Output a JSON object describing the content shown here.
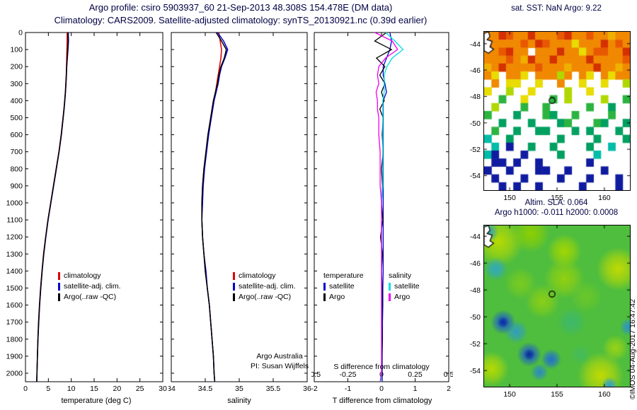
{
  "header": {
    "line1": "Argo profile: csiro 5903937_60 21-Sep-2013 48.308S 154.478E (DM data)",
    "line2": "Climatology: CARS2009. Satellite-adjusted climatology: synTS_20130921.nc (0.39d earlier)"
  },
  "annotations": {
    "argo_australia": "Argo Australia",
    "pi": "PI: Susan Wijffels",
    "imos_credit": "©IMOS 04-Aug-2017 16:47:42"
  },
  "colors": {
    "climatology": "#dc0000",
    "satellite": "#0000cc",
    "argo": "#000000",
    "sal_satellite": "#00dce0",
    "sal_argo": "#ee00ee",
    "title_text": "#000044"
  },
  "legends": {
    "profile": [
      {
        "label": "climatology",
        "color_key": "climatology"
      },
      {
        "label": "satellite-adj. clim.",
        "color_key": "satellite"
      },
      {
        "label": "Argo(..raw -QC)",
        "color_key": "argo"
      }
    ],
    "difference": {
      "col1_header": "temperature",
      "col2_header": "salinity",
      "col1": [
        {
          "label": "satellite",
          "color_key": "satellite"
        },
        {
          "label": "Argo",
          "color_key": "argo"
        }
      ],
      "col2": [
        {
          "label": "satellite",
          "color_key": "sal_satellite"
        },
        {
          "label": "Argo",
          "color_key": "sal_argo"
        }
      ]
    }
  },
  "maps": {
    "coastline": [
      [
        0.0,
        0.01
      ],
      [
        0.03,
        0.0
      ],
      [
        0.04,
        0.03
      ],
      [
        0.02,
        0.05
      ],
      [
        0.055,
        0.06
      ],
      [
        0.04,
        0.095
      ],
      [
        0.065,
        0.11
      ],
      [
        0.03,
        0.135
      ],
      [
        0.0,
        0.12
      ]
    ]
  },
  "chart_data": [
    {
      "type": "line",
      "name": "temperature_profile",
      "xlabel": "temperature (deg C)",
      "xlim": [
        0,
        30
      ],
      "xticks": [
        0,
        5,
        10,
        15,
        20,
        25,
        30
      ],
      "ylim": [
        0,
        2050
      ],
      "yticks": [
        0,
        100,
        200,
        300,
        400,
        500,
        600,
        700,
        800,
        900,
        1000,
        1100,
        1200,
        1300,
        1400,
        1500,
        1600,
        1700,
        1800,
        1900,
        2000
      ],
      "y_inverted": true,
      "depths": [
        0,
        50,
        100,
        150,
        200,
        250,
        300,
        350,
        400,
        450,
        500,
        600,
        700,
        800,
        900,
        1000,
        1100,
        1200,
        1300,
        1400,
        1500,
        1600,
        1700,
        1800,
        1900,
        2000,
        2050
      ],
      "series": [
        {
          "name": "climatology",
          "color": "#dc0000",
          "values": [
            9.1,
            9.1,
            9.05,
            9.0,
            8.95,
            8.9,
            8.8,
            8.7,
            8.55,
            8.4,
            8.2,
            7.8,
            7.3,
            6.7,
            6.1,
            5.5,
            4.9,
            4.4,
            3.95,
            3.6,
            3.3,
            3.05,
            2.85,
            2.7,
            2.6,
            2.5,
            2.45
          ]
        },
        {
          "name": "satellite-adj. clim.",
          "color": "#0000cc",
          "values": [
            9.35,
            9.4,
            9.3,
            9.15,
            9.0,
            8.95,
            8.85,
            8.75,
            8.6,
            8.45,
            8.25,
            7.85,
            7.35,
            6.75,
            6.15,
            5.55,
            4.95,
            4.45,
            4.0,
            3.65,
            3.35,
            3.1,
            2.9,
            2.74,
            2.62,
            2.52,
            2.47
          ]
        },
        {
          "name": "Argo(..raw -QC)",
          "color": "#000000",
          "values": [
            9.25,
            9.32,
            9.22,
            9.12,
            9.02,
            8.92,
            8.84,
            8.72,
            8.58,
            8.42,
            8.22,
            7.82,
            7.33,
            6.72,
            6.12,
            5.52,
            4.92,
            4.42,
            3.98,
            3.62,
            3.32,
            3.07,
            2.87,
            2.72,
            2.61,
            2.51,
            2.46
          ]
        }
      ]
    },
    {
      "type": "line",
      "name": "salinity_profile",
      "xlabel": "salinity",
      "xlim": [
        34,
        36
      ],
      "xticks": [
        34,
        34.5,
        35,
        35.5,
        36
      ],
      "ylim": [
        0,
        2050
      ],
      "yticks": [
        0,
        100,
        200,
        300,
        400,
        500,
        600,
        700,
        800,
        900,
        1000,
        1100,
        1200,
        1300,
        1400,
        1500,
        1600,
        1700,
        1800,
        1900,
        2000
      ],
      "y_inverted": true,
      "depths": [
        0,
        50,
        100,
        150,
        200,
        250,
        300,
        350,
        400,
        450,
        500,
        600,
        700,
        800,
        900,
        1000,
        1100,
        1200,
        1300,
        1400,
        1500,
        1600,
        1700,
        1800,
        1900,
        2000,
        2050
      ],
      "series": [
        {
          "name": "climatology",
          "color": "#dc0000",
          "values": [
            34.7,
            34.72,
            34.74,
            34.73,
            34.71,
            34.69,
            34.67,
            34.65,
            34.62,
            34.6,
            34.58,
            34.54,
            34.51,
            34.48,
            34.46,
            34.45,
            34.45,
            34.46,
            34.48,
            34.5,
            34.53,
            34.56,
            34.58,
            34.6,
            34.62,
            34.63,
            34.64
          ]
        },
        {
          "name": "satellite-adj. clim.",
          "color": "#0000cc",
          "values": [
            34.68,
            34.77,
            34.83,
            34.79,
            34.74,
            34.71,
            34.69,
            34.66,
            34.63,
            34.61,
            34.59,
            34.55,
            34.52,
            34.49,
            34.47,
            34.46,
            34.45,
            34.46,
            34.48,
            34.51,
            34.53,
            34.56,
            34.58,
            34.6,
            34.62,
            34.63,
            34.64
          ]
        },
        {
          "name": "Argo(..raw -QC)",
          "color": "#000000",
          "values": [
            34.66,
            34.74,
            34.81,
            34.78,
            34.73,
            34.7,
            34.68,
            34.65,
            34.62,
            34.6,
            34.58,
            34.54,
            34.51,
            34.48,
            34.46,
            34.45,
            34.45,
            34.46,
            34.48,
            34.5,
            34.53,
            34.56,
            34.58,
            34.6,
            34.62,
            34.63,
            34.64
          ]
        }
      ]
    },
    {
      "type": "line",
      "name": "difference_profile",
      "xlabel": "T difference from climatology",
      "sal_axis_title": "S difference from climatology",
      "x_temp_lim": [
        -2,
        2
      ],
      "x_temp_ticks": [
        -2,
        -1,
        0,
        1,
        2
      ],
      "x_sal_lim": [
        -0.5,
        0.5
      ],
      "x_sal_tick_labels": [
        "-0.5",
        "-0.25",
        "0",
        "0.25",
        "0.5"
      ],
      "ylim": [
        0,
        2050
      ],
      "yticks": [
        0,
        100,
        200,
        300,
        400,
        500,
        600,
        700,
        800,
        900,
        1000,
        1100,
        1200,
        1300,
        1400,
        1500,
        1600,
        1700,
        1800,
        1900,
        2000
      ],
      "y_inverted": true,
      "depths": [
        0,
        50,
        100,
        150,
        200,
        250,
        300,
        350,
        400,
        450,
        500,
        600,
        700,
        800,
        900,
        1000,
        1100,
        1200,
        1300,
        1400,
        1500,
        1600,
        1700,
        1800,
        1900,
        2000,
        2050
      ],
      "series": [
        {
          "name": "temperature satellite",
          "axis": "temp",
          "color": "#0000cc",
          "values": [
            0.25,
            0.3,
            0.25,
            0.15,
            0.05,
            0.05,
            0.1,
            0.15,
            0.05,
            0.05,
            0.05,
            0.05,
            0.05,
            0.05,
            0.05,
            0.05,
            0.05,
            0.05,
            0.05,
            0.05,
            0.04,
            0.04,
            0.03,
            0.03,
            0.02,
            0.02,
            0.02
          ]
        },
        {
          "name": "temperature Argo",
          "axis": "temp",
          "color": "#000000",
          "values": [
            0.15,
            -0.2,
            0.3,
            -0.15,
            0.1,
            -0.05,
            0.1,
            0.0,
            0.08,
            -0.05,
            0.05,
            0.02,
            0.05,
            0.0,
            0.03,
            0.0,
            0.04,
            -0.03,
            0.03,
            0.0,
            0.02,
            0.02,
            0.01,
            0.02,
            0.01,
            0.01,
            0.01
          ]
        },
        {
          "name": "salinity satellite",
          "axis": "sal",
          "color": "#00dce0",
          "values": [
            0.03,
            0.1,
            0.16,
            0.08,
            0.04,
            0.02,
            0.02,
            0.02,
            0.01,
            0.01,
            0.01,
            0.01,
            0.01,
            0.01,
            0.01,
            0.0,
            0.0,
            0.0,
            0.0,
            0.0,
            0.0,
            0.0,
            0.0,
            0.0,
            0.0,
            0.0,
            0.0
          ]
        },
        {
          "name": "salinity Argo",
          "axis": "sal",
          "color": "#ee00ee",
          "values": [
            -0.05,
            0.08,
            0.12,
            0.03,
            -0.02,
            -0.03,
            -0.02,
            -0.04,
            -0.03,
            -0.03,
            -0.02,
            -0.02,
            -0.01,
            -0.01,
            -0.01,
            0.0,
            0.0,
            0.0,
            0.0,
            0.0,
            0.0,
            0.0,
            0.0,
            0.0,
            0.0,
            0.0,
            -0.01
          ]
        }
      ]
    },
    {
      "type": "heatmap",
      "name": "sst_map",
      "title": "sat. SST: NaN Argo: 9.22",
      "lon_range": [
        147.3,
        162.7
      ],
      "lat_range": [
        -55.1,
        -43.1
      ],
      "lon_ticks": [
        150,
        155,
        160
      ],
      "lat_ticks": [
        -44,
        -46,
        -48,
        -50,
        -52,
        -54
      ],
      "argo_location": {
        "lon": 154.478,
        "lat": -48.308
      },
      "palette": {
        "r": "#d43000",
        "d": "#e85800",
        "o": "#f08800",
        "m": "#f0b000",
        "y": "#e8dc00",
        "l": "#b0d800",
        "g": "#2cb440",
        "e": "#00a060",
        "t": "#00bca8",
        "c": "#30c8dc",
        "b": "#2050dc",
        "n": "#101ca0",
        ".": "#ffffff"
      },
      "grid_rows": [
        "oordoorooodroodoomoo",
        "roooodordoooyooorodo",
        "oodroo.ooorooyoddoor",
        "ooodomrooroooorooood",
        "moroooodooomoooroomo",
        "oy.ooy.ooolo.oy.oyoo",
        ".o.yy..y..o..y..y..l",
        "y..l..y....l..y.....",
        "..g..y...g.l....l..g",
        ".l...g..g.....g..e..",
        "g...e...ge..g....g..",
        "..e...e...eg...ge..e",
        ".g..e..ee...e.e...e.",
        "t..e......e....e...e",
        ".t.n..e..e....e..t..",
        "tn...n....e....t....",
        ".nn.n..n......n.....",
        "n..n...nn..n....n...",
        ".n...n....n...n...n.",
        "..n.n..n.....n....n."
      ]
    },
    {
      "type": "heatmap",
      "name": "sla_map",
      "title1": "Altim. SLA: 0.064",
      "title2": "Argo h1000: -0.011 h2000: 0.0008",
      "lon_range": [
        147.3,
        162.7
      ],
      "lat_range": [
        -55.2,
        -43.2
      ],
      "lon_ticks": [
        150,
        155,
        160
      ],
      "lat_ticks": [
        -44,
        -46,
        -48,
        -50,
        -52,
        -54
      ],
      "argo_location": {
        "lon": 154.478,
        "lat": -48.308
      },
      "background": "#4fbe3e",
      "blobs": [
        {
          "x": 0.1,
          "y": 0.1,
          "r": 0.17,
          "c": "#bcdc00"
        },
        {
          "x": 0.32,
          "y": 0.05,
          "r": 0.13,
          "c": "#90d000"
        },
        {
          "x": 0.55,
          "y": 0.16,
          "r": 0.12,
          "c": "#a6d800"
        },
        {
          "x": 0.03,
          "y": 0.04,
          "r": 0.07,
          "c": "#2f9ec4"
        },
        {
          "x": 0.92,
          "y": 0.27,
          "r": 0.15,
          "c": "#c6dc00"
        },
        {
          "x": 0.55,
          "y": 0.33,
          "r": 0.14,
          "c": "#96d20e"
        },
        {
          "x": 0.25,
          "y": 0.36,
          "r": 0.11,
          "c": "#7ccc1e"
        },
        {
          "x": 0.08,
          "y": 0.27,
          "r": 0.08,
          "c": "#2fa8c8"
        },
        {
          "x": 0.4,
          "y": 0.47,
          "r": 0.12,
          "c": "#8ed014"
        },
        {
          "x": 0.7,
          "y": 0.44,
          "r": 0.11,
          "c": "#6cc828"
        },
        {
          "x": 0.6,
          "y": 0.6,
          "r": 0.1,
          "c": "#3cb86e"
        },
        {
          "x": 0.22,
          "y": 0.66,
          "r": 0.08,
          "c": "#2f9cc8"
        },
        {
          "x": 0.13,
          "y": 0.6,
          "r": 0.085,
          "c": "#1b55d8"
        },
        {
          "x": 0.13,
          "y": 0.6,
          "r": 0.04,
          "c": "#0a2aa0"
        },
        {
          "x": 0.31,
          "y": 0.8,
          "r": 0.085,
          "c": "#1b55d8"
        },
        {
          "x": 0.31,
          "y": 0.8,
          "r": 0.04,
          "c": "#0a2a90"
        },
        {
          "x": 0.46,
          "y": 0.83,
          "r": 0.07,
          "c": "#1f6ad8"
        },
        {
          "x": 0.38,
          "y": 0.91,
          "r": 0.06,
          "c": "#2a86cc"
        },
        {
          "x": 0.05,
          "y": 0.89,
          "r": 0.12,
          "c": "#bcdc00"
        },
        {
          "x": 0.8,
          "y": 0.93,
          "r": 0.16,
          "c": "#c8dc00"
        },
        {
          "x": 0.86,
          "y": 0.99,
          "r": 0.055,
          "c": "#2a9ed6"
        },
        {
          "x": 0.99,
          "y": 0.63,
          "r": 0.06,
          "c": "#2a90cf"
        },
        {
          "x": 0.9,
          "y": 0.76,
          "r": 0.09,
          "c": "#9cd414"
        },
        {
          "x": 0.66,
          "y": 0.8,
          "r": 0.07,
          "c": "#44bc5e"
        }
      ]
    }
  ]
}
